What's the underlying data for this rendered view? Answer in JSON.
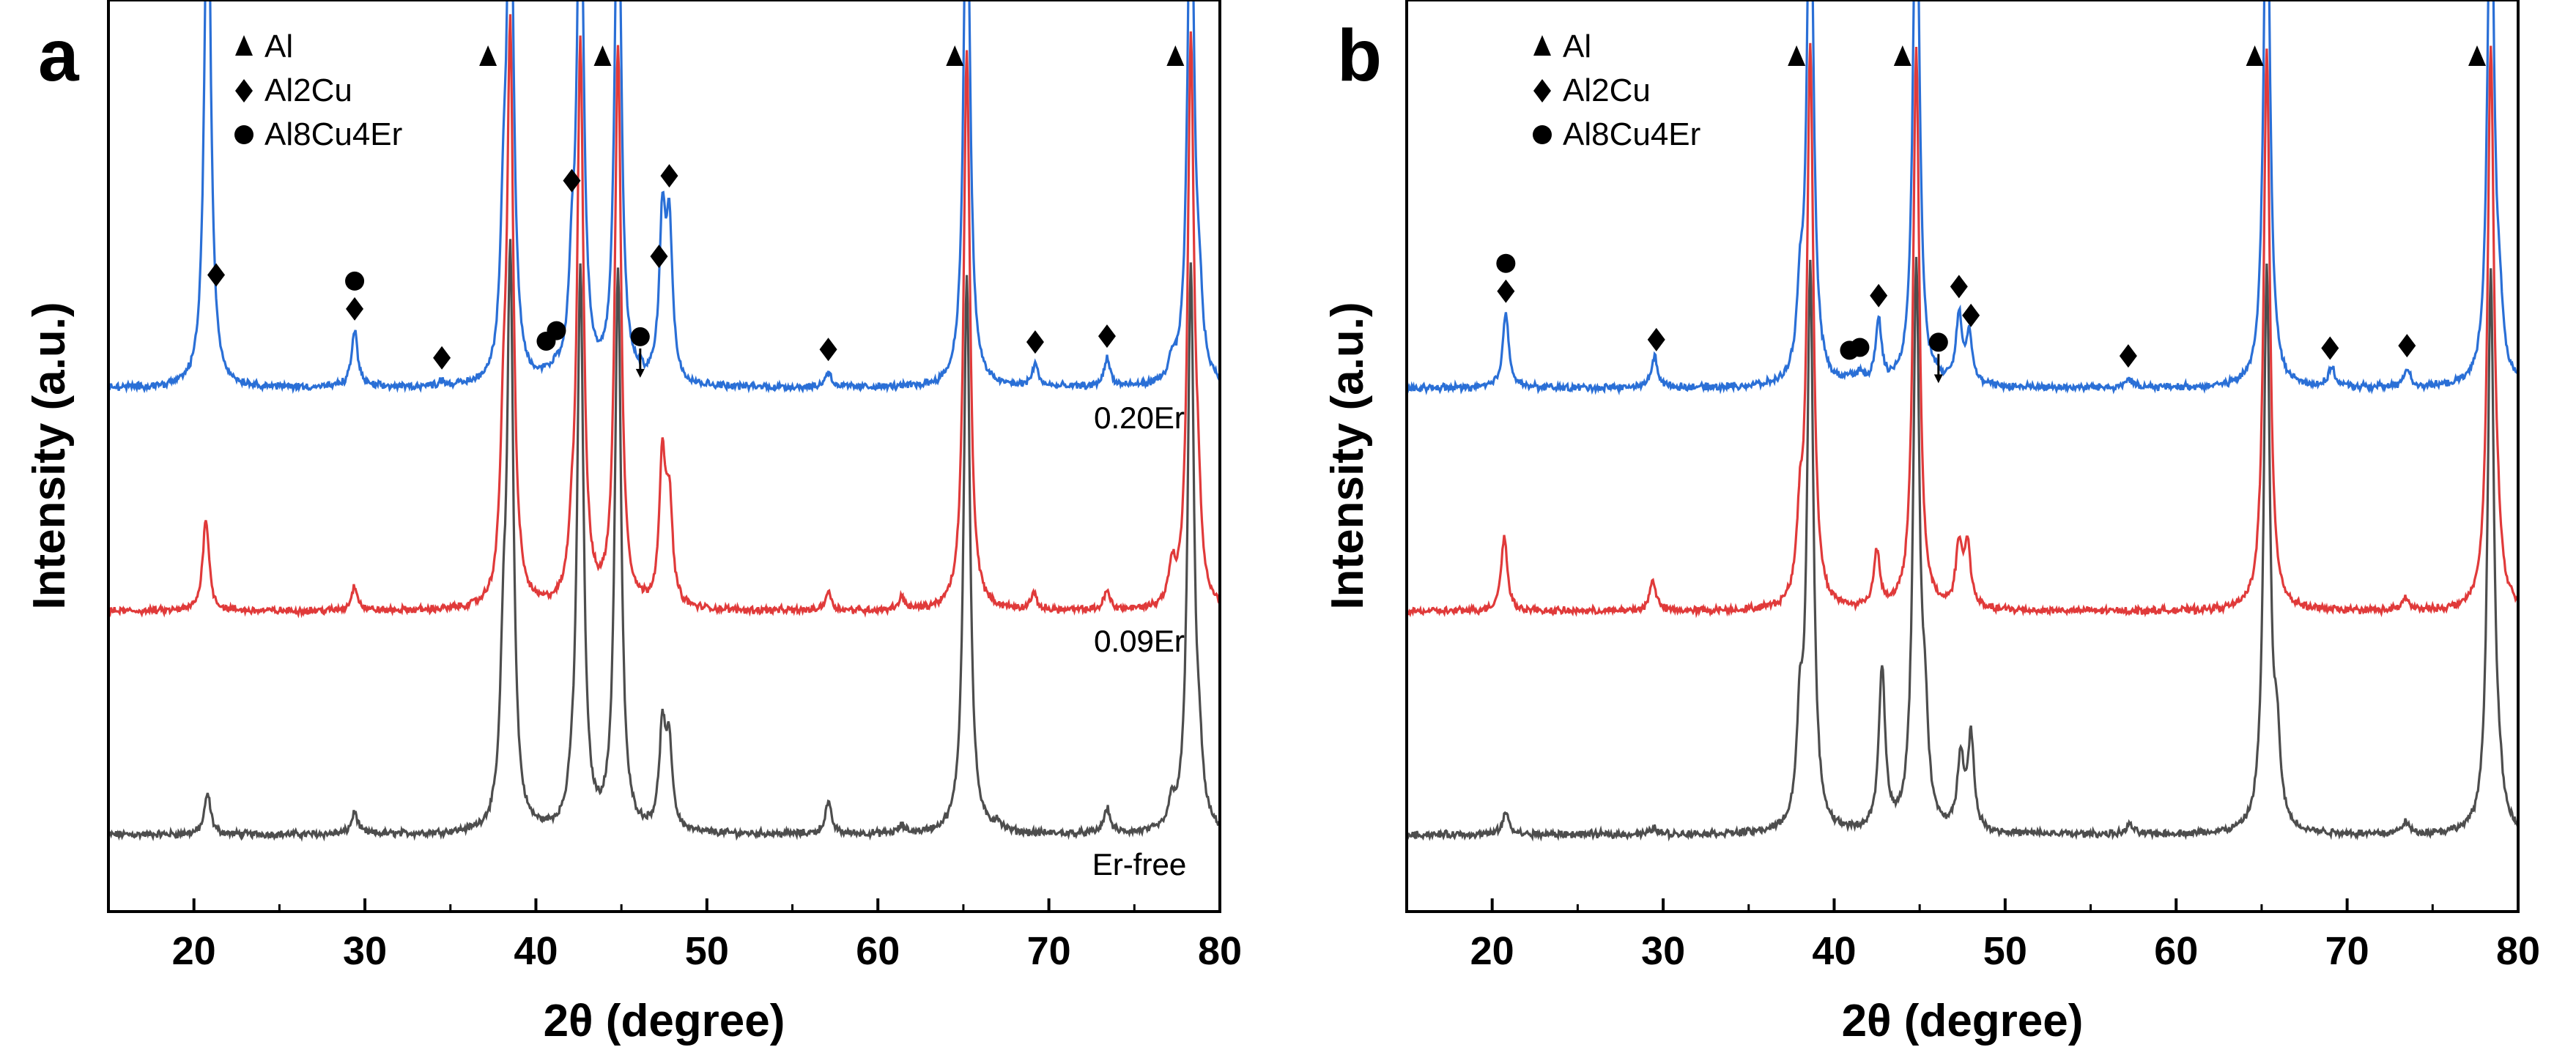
{
  "chart_data": [
    {
      "type": "line",
      "panel": "a",
      "xlabel": "2θ (degree)",
      "ylabel": "Intensity (a.u.)",
      "xlim": [
        15,
        80
      ],
      "xticks": [
        "20",
        "30",
        "40",
        "50",
        "60",
        "70",
        "80"
      ],
      "legend": [
        {
          "symbol": "triangle",
          "label": "Al"
        },
        {
          "symbol": "diamond",
          "label": "Al2Cu"
        },
        {
          "symbol": "circle",
          "label": "Al8Cu4Er"
        }
      ],
      "series": [
        {
          "name": "0.20Er",
          "color": "#2a6fd6",
          "offset": 2.0,
          "peaks": [
            [
              20.8,
              9
            ],
            [
              29.4,
              0.9
            ],
            [
              34.5,
              0.08
            ],
            [
              38.1,
              2.0
            ],
            [
              38.5,
              9
            ],
            [
              40.6,
              0.1
            ],
            [
              41.2,
              0.15
            ],
            [
              42.1,
              1.4
            ],
            [
              42.6,
              9
            ],
            [
              44.8,
              9
            ],
            [
              46.1,
              0.06
            ],
            [
              47.4,
              2.5
            ],
            [
              47.8,
              2.4
            ],
            [
              57.1,
              0.25
            ],
            [
              65.2,
              9
            ],
            [
              69.2,
              0.35
            ],
            [
              73.4,
              0.45
            ],
            [
              77.2,
              0.3
            ],
            [
              78.3,
              9
            ],
            [
              78.8,
              1.0
            ]
          ]
        },
        {
          "name": "0.09Er",
          "color": "#e03a3a",
          "offset": 1.0,
          "peaks": [
            [
              20.7,
              1.5
            ],
            [
              29.4,
              0.4
            ],
            [
              38.1,
              2.2
            ],
            [
              38.5,
              9
            ],
            [
              42.1,
              0.7
            ],
            [
              42.6,
              9
            ],
            [
              44.8,
              9
            ],
            [
              47.4,
              2.3
            ],
            [
              47.8,
              1.6
            ],
            [
              57.1,
              0.3
            ],
            [
              61.4,
              0.2
            ],
            [
              65.2,
              9
            ],
            [
              69.1,
              0.25
            ],
            [
              73.4,
              0.3
            ],
            [
              77.2,
              0.6
            ],
            [
              78.3,
              9
            ],
            [
              78.7,
              1.2
            ]
          ]
        },
        {
          "name": "Er-free",
          "color": "#4d4d4d",
          "offset": 0.0,
          "peaks": [
            [
              20.8,
              0.65
            ],
            [
              29.4,
              0.35
            ],
            [
              38.1,
              2.2
            ],
            [
              38.5,
              9
            ],
            [
              42.1,
              0.3
            ],
            [
              42.6,
              9
            ],
            [
              44.8,
              9
            ],
            [
              47.4,
              1.6
            ],
            [
              47.8,
              1.3
            ],
            [
              57.1,
              0.5
            ],
            [
              61.4,
              0.12
            ],
            [
              65.2,
              9
            ],
            [
              67.0,
              0.15
            ],
            [
              73.4,
              0.4
            ],
            [
              77.2,
              0.4
            ],
            [
              78.3,
              9
            ],
            [
              78.8,
              0.8
            ]
          ]
        }
      ],
      "annotations": [
        {
          "x": 21.3,
          "markers": [
            "diamond"
          ]
        },
        {
          "x": 37.2,
          "markers": [
            "triangle"
          ]
        },
        {
          "x": 43.9,
          "markers": [
            "triangle"
          ]
        },
        {
          "x": 47.2,
          "markers": [
            "diamond"
          ]
        },
        {
          "x": 47.8,
          "markers": [
            "diamond"
          ]
        },
        {
          "x": 64.5,
          "markers": [
            "triangle"
          ]
        },
        {
          "x": 77.4,
          "markers": [
            "triangle"
          ]
        },
        {
          "x": 29.4,
          "markers": [
            "circle",
            "diamond"
          ]
        },
        {
          "x": 34.5,
          "markers": [
            "diamond"
          ]
        },
        {
          "x": 40.6,
          "markers": [
            "circle"
          ]
        },
        {
          "x": 41.2,
          "markers": [
            "circle"
          ]
        },
        {
          "x": 42.1,
          "markers": [
            "diamond"
          ]
        },
        {
          "x": 46.1,
          "markers": [
            "circle"
          ],
          "arrow": true
        },
        {
          "x": 57.1,
          "markers": [
            "diamond"
          ]
        },
        {
          "x": 69.2,
          "markers": [
            "diamond"
          ]
        },
        {
          "x": 73.4,
          "markers": [
            "diamond"
          ]
        }
      ]
    },
    {
      "type": "line",
      "panel": "b",
      "xlabel": "2θ (degree)",
      "ylabel": "Intensity (a.u.)",
      "xlim": [
        15,
        80
      ],
      "xticks": [
        "20",
        "30",
        "40",
        "50",
        "60",
        "70",
        "80"
      ],
      "legend": [
        {
          "symbol": "triangle",
          "label": "Al"
        },
        {
          "symbol": "diamond",
          "label": "Al2Cu"
        },
        {
          "symbol": "circle",
          "label": "Al8Cu4Er"
        }
      ],
      "series": [
        {
          "name": "0.20Er",
          "color": "#2a6fd6",
          "offset": 2.0,
          "peaks": [
            [
              20.8,
              1.2
            ],
            [
              29.5,
              0.5
            ],
            [
              38.0,
              1.2
            ],
            [
              38.6,
              9
            ],
            [
              40.9,
              0.1
            ],
            [
              41.5,
              0.15
            ],
            [
              42.6,
              1.0
            ],
            [
              44.8,
              9
            ],
            [
              46.1,
              0.07
            ],
            [
              47.3,
              1.1
            ],
            [
              47.9,
              0.8
            ],
            [
              57.2,
              0.15
            ],
            [
              65.3,
              9
            ],
            [
              69.1,
              0.3
            ],
            [
              73.5,
              0.3
            ],
            [
              78.4,
              9
            ],
            [
              78.9,
              0.9
            ]
          ]
        },
        {
          "name": "0.09Er",
          "color": "#e03a3a",
          "offset": 1.0,
          "peaks": [
            [
              20.7,
              1.2
            ],
            [
              29.4,
              0.5
            ],
            [
              38.0,
              1.2
            ],
            [
              38.6,
              9
            ],
            [
              42.5,
              0.9
            ],
            [
              44.8,
              9
            ],
            [
              47.3,
              1.0
            ],
            [
              47.8,
              1.0
            ],
            [
              65.3,
              9
            ],
            [
              73.4,
              0.2
            ],
            [
              78.4,
              9
            ],
            [
              78.8,
              0.6
            ]
          ]
        },
        {
          "name": "Er-free",
          "color": "#4d4d4d",
          "offset": 0.0,
          "peaks": [
            [
              20.8,
              0.35
            ],
            [
              29.5,
              0.1
            ],
            [
              38.0,
              1.6
            ],
            [
              38.6,
              9
            ],
            [
              42.8,
              2.6
            ],
            [
              44.8,
              9
            ],
            [
              45.3,
              1.5
            ],
            [
              47.4,
              1.2
            ],
            [
              48.0,
              1.5
            ],
            [
              57.3,
              0.15
            ],
            [
              65.3,
              9
            ],
            [
              65.9,
              1.2
            ],
            [
              73.4,
              0.2
            ],
            [
              78.4,
              9
            ],
            [
              78.9,
              0.4
            ]
          ]
        }
      ],
      "annotations": [
        {
          "x": 37.8,
          "markers": [
            "triangle"
          ]
        },
        {
          "x": 44.0,
          "markers": [
            "triangle"
          ]
        },
        {
          "x": 64.6,
          "markers": [
            "triangle"
          ]
        },
        {
          "x": 77.6,
          "markers": [
            "triangle"
          ]
        },
        {
          "x": 20.8,
          "markers": [
            "circle",
            "diamond"
          ]
        },
        {
          "x": 29.6,
          "markers": [
            "diamond"
          ]
        },
        {
          "x": 40.9,
          "markers": [
            "circle"
          ]
        },
        {
          "x": 41.5,
          "markers": [
            "circle"
          ]
        },
        {
          "x": 42.6,
          "markers": [
            "diamond"
          ]
        },
        {
          "x": 46.1,
          "markers": [
            "circle"
          ],
          "arrow": true
        },
        {
          "x": 47.3,
          "markers": [
            "diamond"
          ]
        },
        {
          "x": 48.0,
          "markers": [
            "diamond"
          ]
        },
        {
          "x": 57.2,
          "markers": [
            "diamond"
          ]
        },
        {
          "x": 69.0,
          "markers": [
            "diamond"
          ]
        },
        {
          "x": 73.5,
          "markers": [
            "diamond"
          ]
        }
      ]
    }
  ]
}
